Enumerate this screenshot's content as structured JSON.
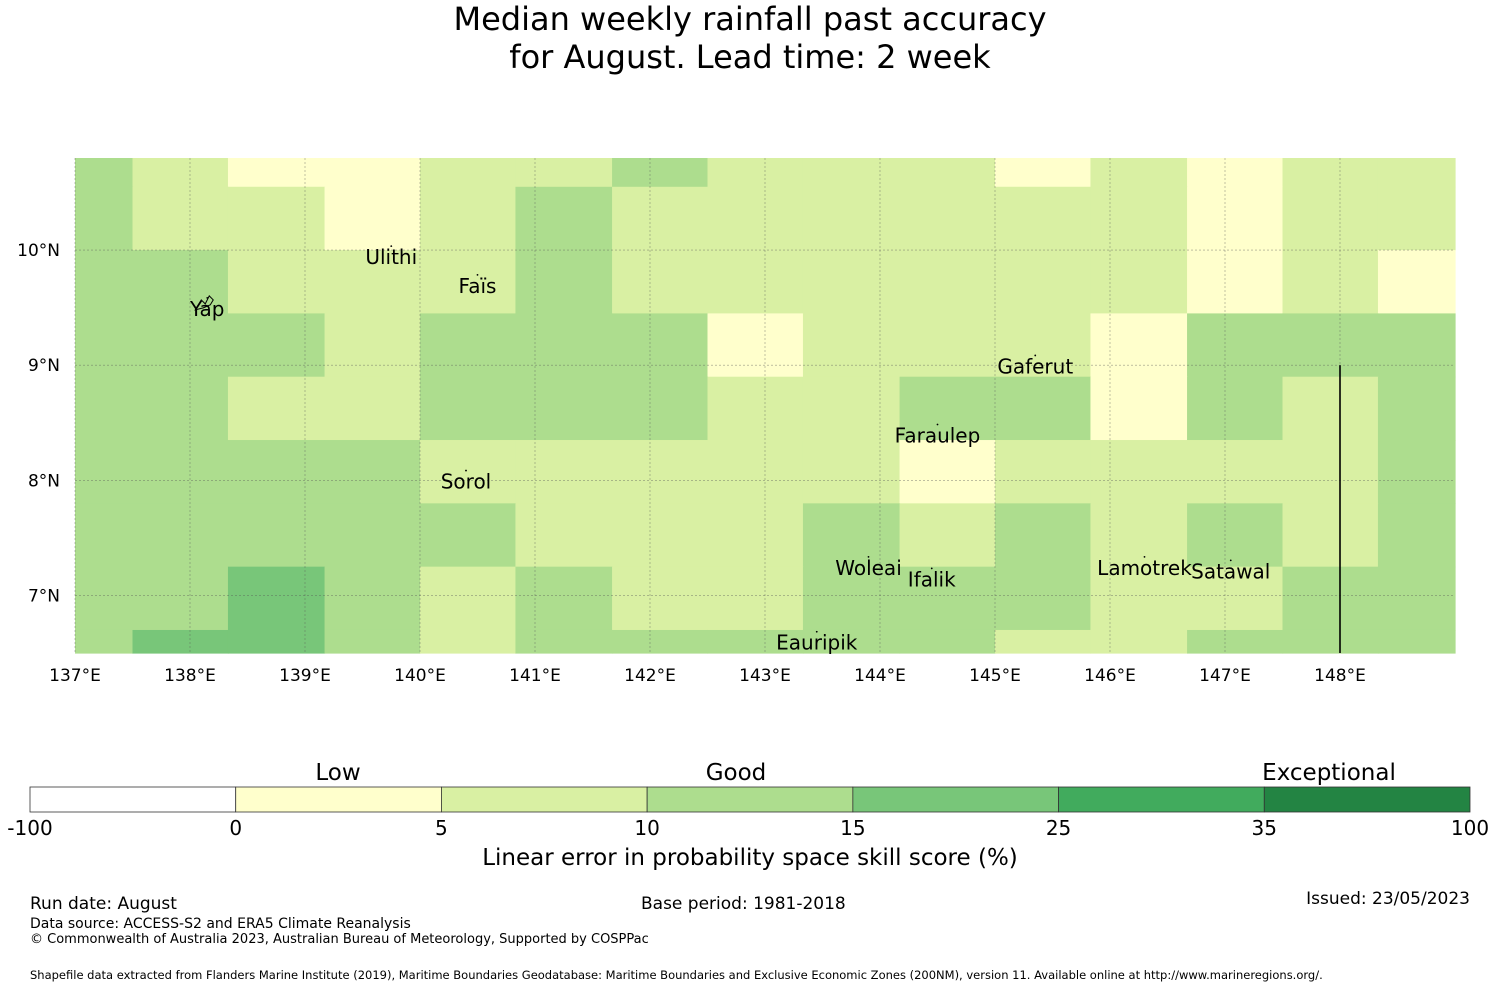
{
  "title": {
    "line1": "Median weekly rainfall past accuracy",
    "line2": "for August. Lead time: 2 week"
  },
  "map": {
    "x_ticks": [
      "137°E",
      "138°E",
      "139°E",
      "140°E",
      "141°E",
      "142°E",
      "143°E",
      "144°E",
      "145°E",
      "146°E",
      "147°E",
      "148°E"
    ],
    "y_ticks": [
      "10°N",
      "9°N",
      "8°N",
      "7°N"
    ],
    "x_tick_values": [
      137,
      138,
      139,
      140,
      141,
      142,
      143,
      144,
      145,
      146,
      147,
      148
    ],
    "y_tick_values": [
      10,
      9,
      8,
      7
    ],
    "lon_range": [
      137.0,
      149.0
    ],
    "lat_range": [
      6.5,
      10.8
    ],
    "grid": true,
    "cell_lon_edges": [
      137.0,
      137.5,
      138.33,
      139.17,
      140.0,
      140.83,
      141.67,
      142.5,
      143.33,
      144.17,
      145.0,
      145.83,
      146.67,
      147.5,
      148.33,
      149.0
    ],
    "cell_lat_edges": [
      10.8,
      10.55,
      10.0,
      9.45,
      8.9,
      8.35,
      7.8,
      7.25,
      6.7,
      6.5
    ],
    "skill_class_grid": [
      [
        3,
        2,
        1,
        1,
        2,
        2,
        3,
        2,
        2,
        2,
        1,
        2,
        1,
        2,
        2
      ],
      [
        3,
        2,
        2,
        1,
        2,
        3,
        2,
        2,
        2,
        2,
        2,
        2,
        1,
        2,
        2
      ],
      [
        3,
        3,
        2,
        2,
        2,
        3,
        2,
        2,
        2,
        2,
        2,
        2,
        1,
        2,
        1
      ],
      [
        3,
        3,
        3,
        2,
        3,
        3,
        3,
        1,
        2,
        2,
        2,
        1,
        3,
        3,
        3
      ],
      [
        3,
        3,
        2,
        2,
        3,
        3,
        3,
        2,
        2,
        3,
        3,
        1,
        3,
        2,
        3
      ],
      [
        3,
        3,
        3,
        3,
        2,
        2,
        2,
        2,
        2,
        1,
        2,
        2,
        2,
        2,
        3
      ],
      [
        3,
        3,
        3,
        3,
        3,
        2,
        2,
        2,
        3,
        2,
        3,
        2,
        3,
        2,
        3
      ],
      [
        3,
        3,
        4,
        3,
        2,
        3,
        2,
        2,
        3,
        3,
        3,
        2,
        2,
        3,
        3
      ],
      [
        3,
        4,
        4,
        3,
        2,
        3,
        3,
        3,
        3,
        3,
        2,
        2,
        3,
        3,
        3
      ]
    ],
    "places": [
      {
        "name": "Ulithi",
        "lon": 139.75,
        "lat": 10.0
      },
      {
        "name": "Faïs",
        "lon": 140.5,
        "lat": 9.75
      },
      {
        "name": "Yap",
        "lon": 138.15,
        "lat": 9.55
      },
      {
        "name": "Gaferut",
        "lon": 145.35,
        "lat": 9.05
      },
      {
        "name": "Faraulep",
        "lon": 144.5,
        "lat": 8.45
      },
      {
        "name": "Sorol",
        "lon": 140.4,
        "lat": 8.05
      },
      {
        "name": "Woleai",
        "lon": 143.9,
        "lat": 7.3
      },
      {
        "name": "Ifalik",
        "lon": 144.45,
        "lat": 7.2
      },
      {
        "name": "Lamotrek",
        "lon": 146.3,
        "lat": 7.3
      },
      {
        "name": "Satawal",
        "lon": 147.05,
        "lat": 7.27
      },
      {
        "name": "Eauripik",
        "lon": 143.45,
        "lat": 6.65
      }
    ]
  },
  "colorbar": {
    "categories": [
      "Low",
      "Good",
      "Exceptional"
    ],
    "ticks": [
      "-100",
      "0",
      "5",
      "10",
      "15",
      "25",
      "35",
      "100"
    ],
    "colors": [
      "#ffffff",
      "#ffffcc",
      "#d9f0a3",
      "#addd8e",
      "#78c679",
      "#41ab5d",
      "#238443"
    ],
    "label": "Linear error in probability space skill score (%)"
  },
  "footer": {
    "run_date": "Run date: August",
    "base_period": "Base period: 1981-2018",
    "issued": "Issued: 23/05/2023",
    "data_source": "Data source: ACCESS-S2 and ERA5 Climate Reanalysis",
    "copyright": "© Commonwealth of Australia 2023, Australian Bureau of Meteorology, Supported by COSPPac",
    "shapefile": "Shapefile data extracted from Flanders Marine Institute (2019), Maritime Boundaries Geodatabase: Maritime Boundaries and Exclusive Economic Zones (200NM), version 11. Available online at http://www.marineregions.org/."
  }
}
